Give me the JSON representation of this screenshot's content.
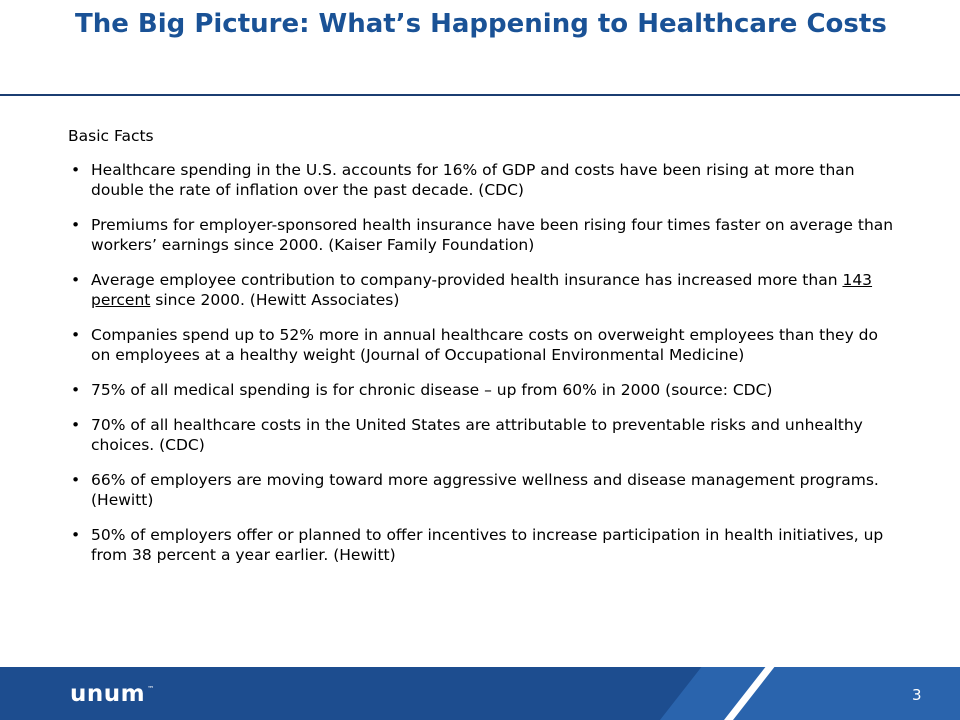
{
  "slide": {
    "title": "The Big Picture: What’s Happening to Healthcare Costs",
    "heading": "Basic Facts",
    "bullet_symbol": "•",
    "bullets": [
      {
        "text": "Healthcare spending in the U.S. accounts for 16% of GDP and costs have been rising at more than double the rate of inflation over the past decade. (CDC)"
      },
      {
        "text": "Premiums for employer-sponsored health insurance have been rising four times faster on average than workers’ earnings since 2000. (Kaiser Family Foundation)"
      },
      {
        "pre": "Average employee contribution to company-provided health insurance has increased more than ",
        "link": "143 percent",
        "post": " since 2000. (Hewitt Associates)"
      },
      {
        "text": "Companies spend up to 52% more in annual healthcare costs on overweight employees than they do on employees at a healthy weight (Journal of Occupational Environmental Medicine)"
      },
      {
        "text": "75% of all medical spending is for chronic disease – up from 60% in 2000 (source: CDC)"
      },
      {
        "text": "70% of all healthcare costs in the United States are attributable to preventable risks and unhealthy choices. (CDC)"
      },
      {
        "text": "66% of employers are moving toward more aggressive wellness and disease management programs. (Hewitt)"
      },
      {
        "text": "50% of employers offer or planned to offer incentives to increase participation in health initiatives, up from 38 percent a year earlier. (Hewitt)"
      }
    ]
  },
  "footer": {
    "logo_text": "unum",
    "logo_mark": "™",
    "page_number": "3"
  },
  "colors": {
    "title": "#1a5296",
    "rule": "#1b3e72",
    "footer": "#1d4d8f",
    "footer_band": "#2a64ad"
  }
}
